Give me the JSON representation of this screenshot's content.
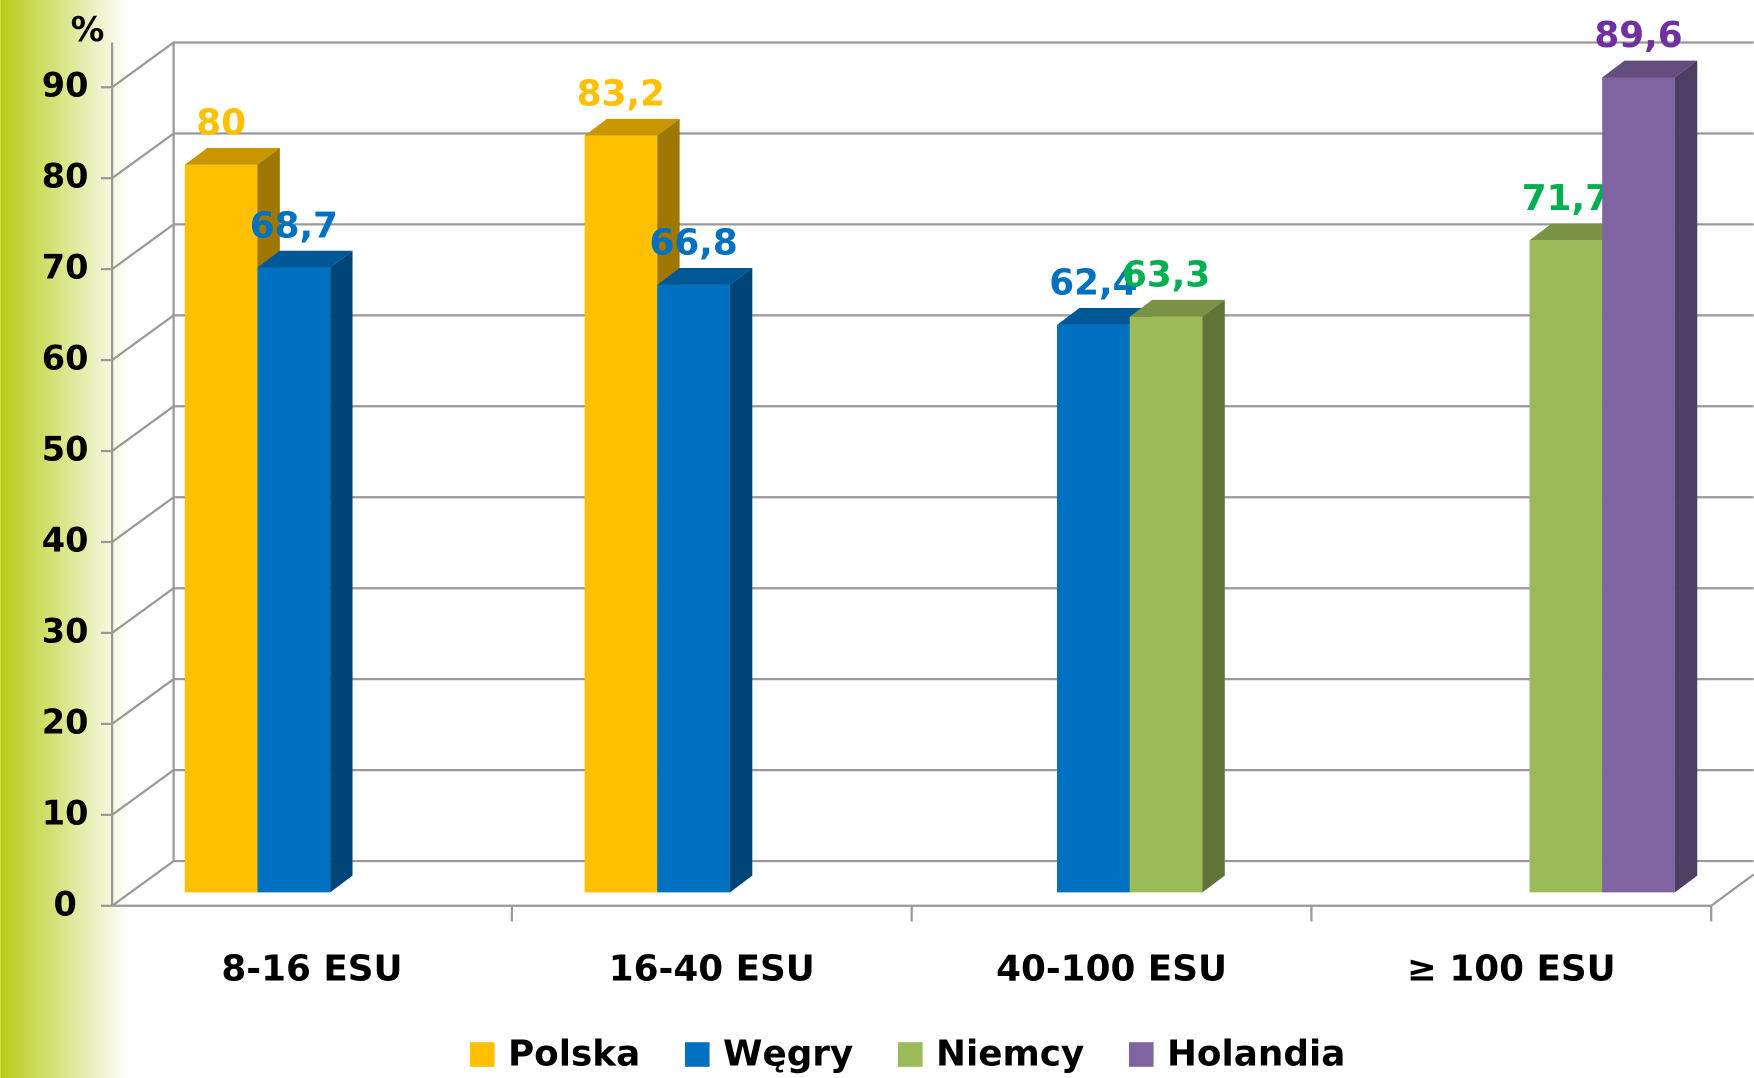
{
  "chart_data": {
    "type": "bar3d",
    "y_label": "%",
    "categories": [
      "8-16 ESU",
      "16-40 ESU",
      "40-100 ESU",
      "≥ 100 ESU"
    ],
    "series": [
      {
        "name": "Polska",
        "color": "#FFC000",
        "label_color": "#FFC000",
        "values": [
          80,
          83.2,
          null,
          null
        ],
        "value_labels": [
          "80",
          "83,2",
          null,
          null
        ]
      },
      {
        "name": "Węgry",
        "color": "#0070C0",
        "label_color": "#0070C0",
        "values": [
          68.7,
          66.8,
          62.4,
          null
        ],
        "value_labels": [
          "68,7",
          "66,8",
          "62,4",
          null
        ]
      },
      {
        "name": "Niemcy",
        "color": "#9BBB59",
        "label_color": "#00B050",
        "values": [
          null,
          null,
          63.3,
          71.7
        ],
        "value_labels": [
          null,
          null,
          "63,3",
          "71,7"
        ]
      },
      {
        "name": "Holandia",
        "color": "#8064A2",
        "label_color": "#7030A0",
        "values": [
          null,
          null,
          null,
          89.6
        ],
        "value_labels": [
          null,
          null,
          null,
          "89,6"
        ]
      }
    ],
    "ylim": [
      0,
      90
    ],
    "yticks": [
      0,
      10,
      20,
      30,
      40,
      50,
      60,
      70,
      80,
      90
    ],
    "grid": true,
    "legend": "bottom"
  }
}
